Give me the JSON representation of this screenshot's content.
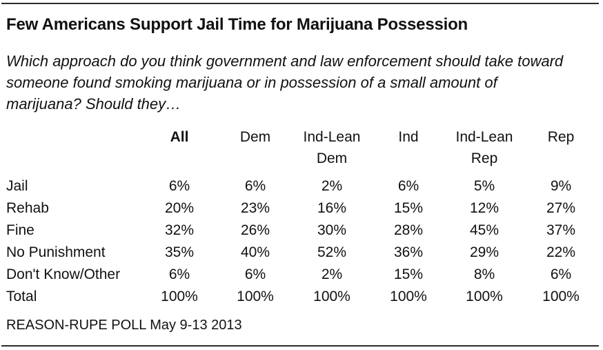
{
  "title": "Few Americans Support Jail Time for Marijuana Possession",
  "question_lines": [
    "Which approach do you think government and law enforcement should take toward",
    "someone found smoking marijuana or in possession of a small amount of",
    "marijuana? Should they…"
  ],
  "source": "REASON-RUPE POLL May 9-13 2013",
  "chart_data": {
    "type": "table",
    "title": "Few Americans Support Jail Time for Marijuana Possession",
    "columns": [
      {
        "lines": [
          "All"
        ],
        "bold": true
      },
      {
        "lines": [
          "Dem"
        ],
        "bold": false
      },
      {
        "lines": [
          "Ind-Lean",
          "Dem"
        ],
        "bold": false
      },
      {
        "lines": [
          "Ind"
        ],
        "bold": false
      },
      {
        "lines": [
          "Ind-Lean",
          "Rep"
        ],
        "bold": false
      },
      {
        "lines": [
          "Rep"
        ],
        "bold": false
      }
    ],
    "rows": [
      {
        "label": "Jail",
        "values": [
          "6%",
          "6%",
          "2%",
          "6%",
          "5%",
          "9%"
        ]
      },
      {
        "label": "Rehab",
        "values": [
          "20%",
          "23%",
          "16%",
          "15%",
          "12%",
          "27%"
        ]
      },
      {
        "label": "Fine",
        "values": [
          "32%",
          "26%",
          "30%",
          "28%",
          "45%",
          "37%"
        ]
      },
      {
        "label": "No Punishment",
        "values": [
          "35%",
          "40%",
          "52%",
          "36%",
          "29%",
          "22%"
        ]
      },
      {
        "label": "Don't Know/Other",
        "values": [
          "6%",
          "6%",
          "2%",
          "15%",
          "8%",
          "6%"
        ]
      },
      {
        "label": "Total",
        "values": [
          "100%",
          "100%",
          "100%",
          "100%",
          "100%",
          "100%"
        ]
      }
    ]
  }
}
